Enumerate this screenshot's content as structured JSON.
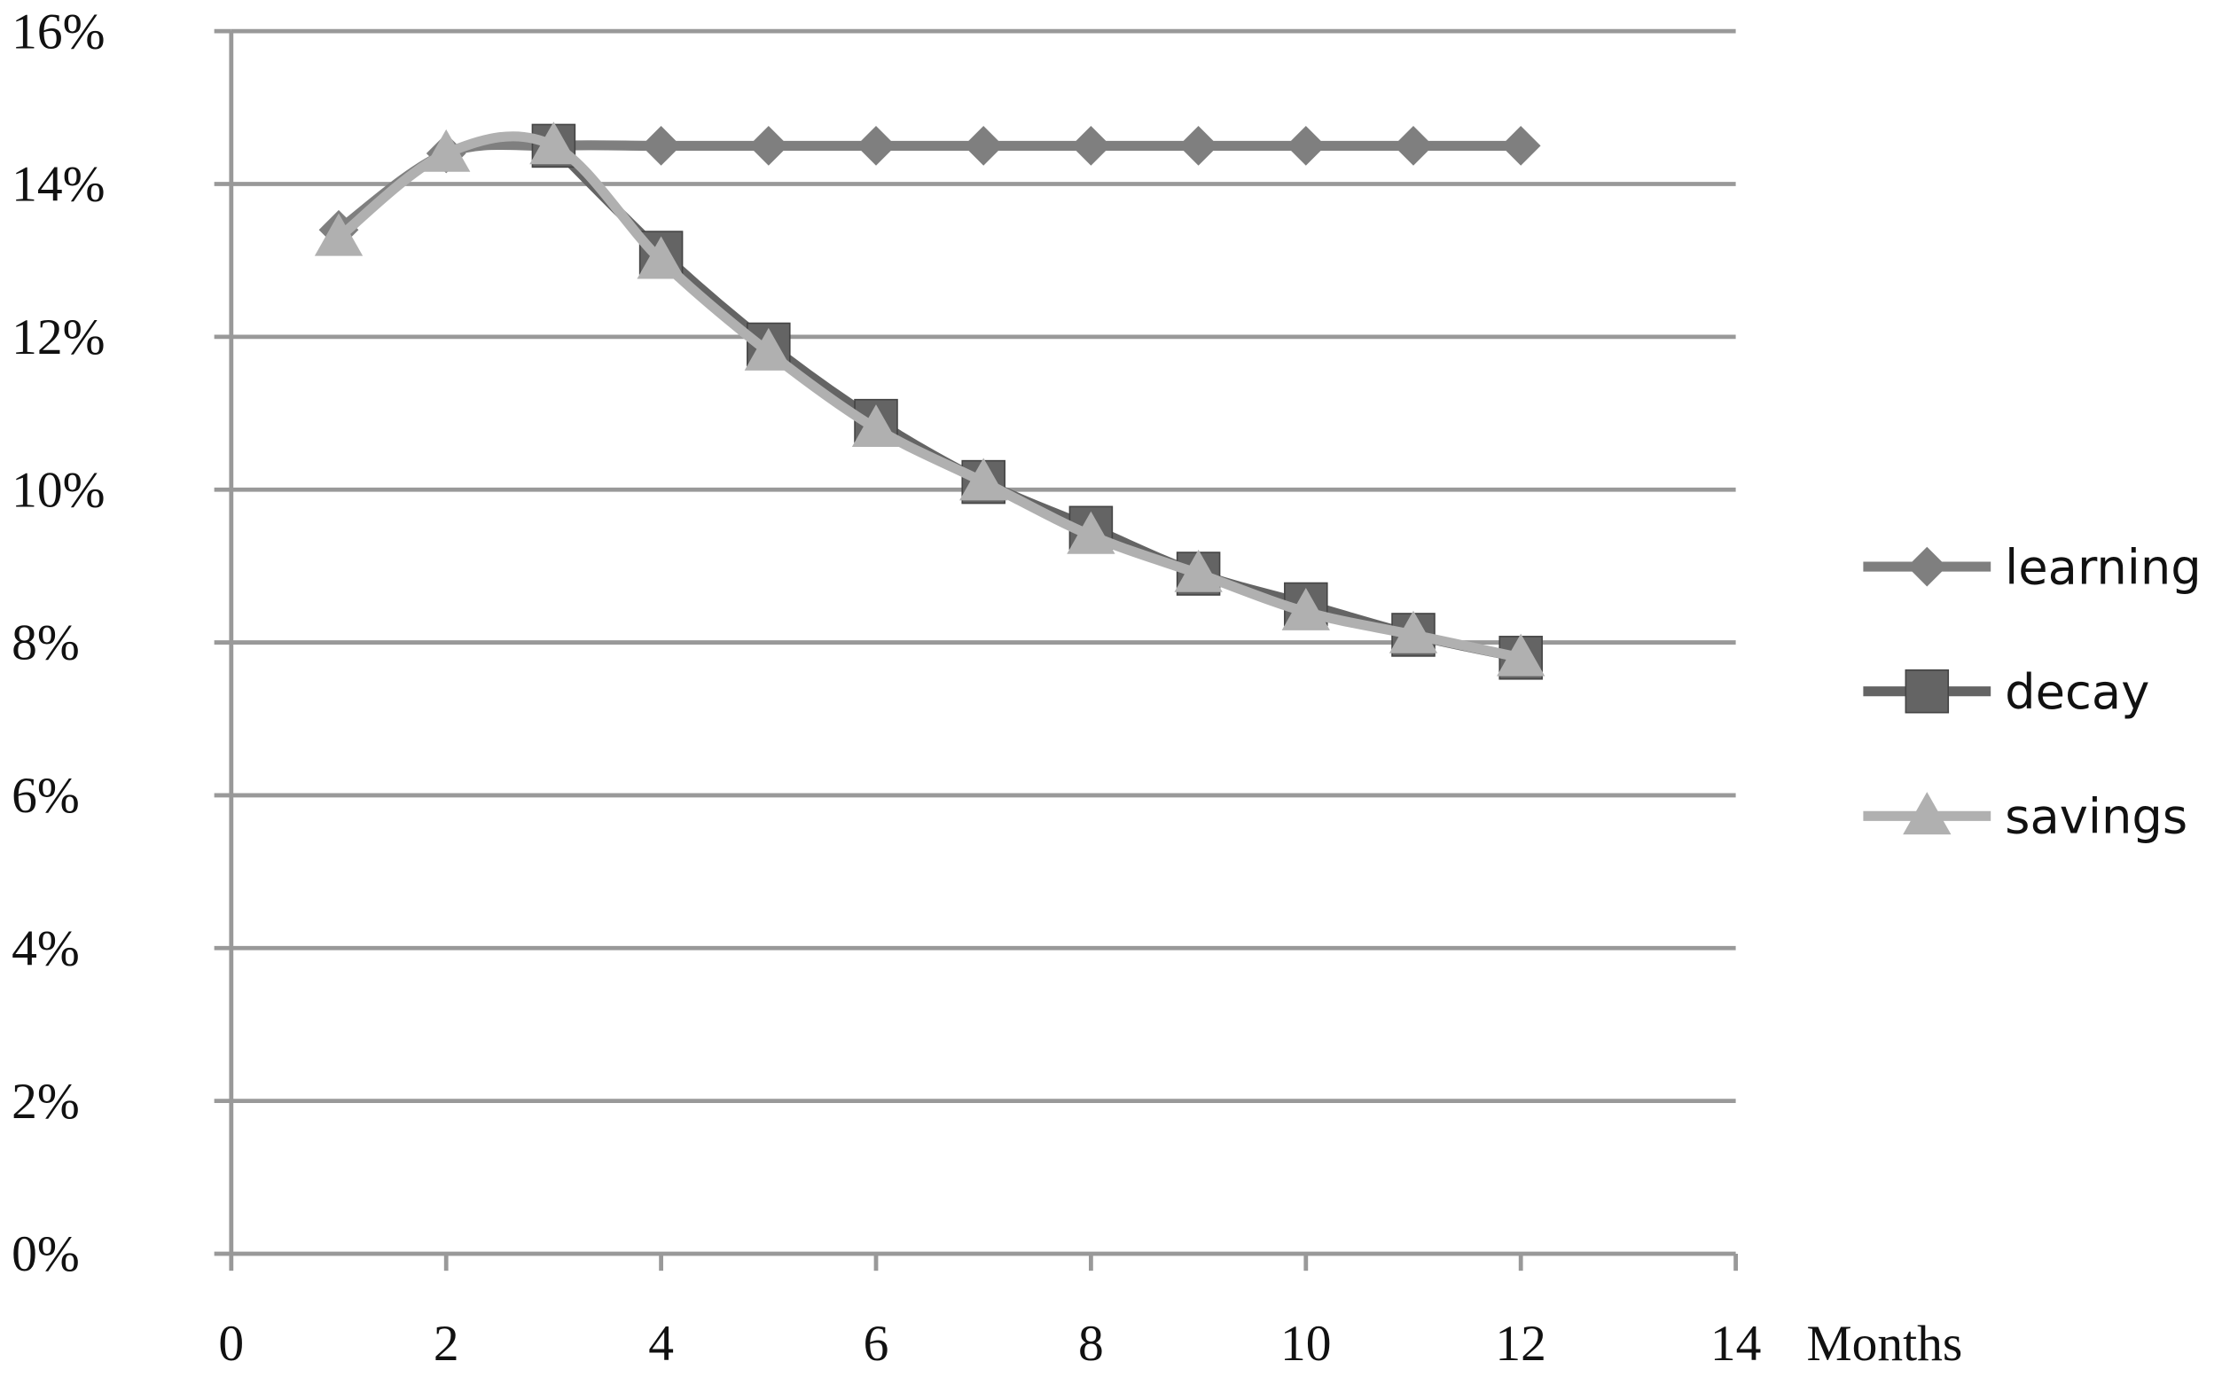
{
  "chart_data": {
    "type": "line",
    "x_label": "Months",
    "x": [
      1,
      2,
      3,
      4,
      5,
      6,
      7,
      8,
      9,
      10,
      11,
      12
    ],
    "series": [
      {
        "name": "learning",
        "color": "#7f7f7f",
        "marker": "diamond",
        "values": [
          13.4,
          14.4,
          14.5,
          14.5,
          14.5,
          14.5,
          14.5,
          14.5,
          14.5,
          14.5,
          14.5,
          14.5
        ]
      },
      {
        "name": "decay",
        "color": "#646464",
        "marker": "square",
        "values": [
          null,
          null,
          14.5,
          13.1,
          11.9,
          10.9,
          10.1,
          9.5,
          8.9,
          8.5,
          8.1,
          7.8
        ]
      },
      {
        "name": "savings",
        "color": "#b0b0b0",
        "marker": "triangle",
        "values": [
          13.3,
          14.4,
          14.5,
          13.0,
          11.8,
          10.8,
          10.1,
          9.4,
          8.9,
          8.4,
          8.1,
          7.8
        ]
      }
    ],
    "xlim": [
      0,
      14
    ],
    "xticks": [
      0,
      2,
      4,
      6,
      8,
      10,
      12,
      14
    ],
    "ylim": [
      0,
      16
    ],
    "yticks": [
      {
        "value": 0,
        "label": "0%"
      },
      {
        "value": 2,
        "label": "2%"
      },
      {
        "value": 4,
        "label": "4%"
      },
      {
        "value": 6,
        "label": "6%"
      },
      {
        "value": 8,
        "label": "8%"
      },
      {
        "value": 10,
        "label": "10%"
      },
      {
        "value": 12,
        "label": "12%"
      },
      {
        "value": 14,
        "label": "14%"
      },
      {
        "value": 16,
        "label": "16%"
      }
    ],
    "grid": true,
    "legend": "right"
  }
}
